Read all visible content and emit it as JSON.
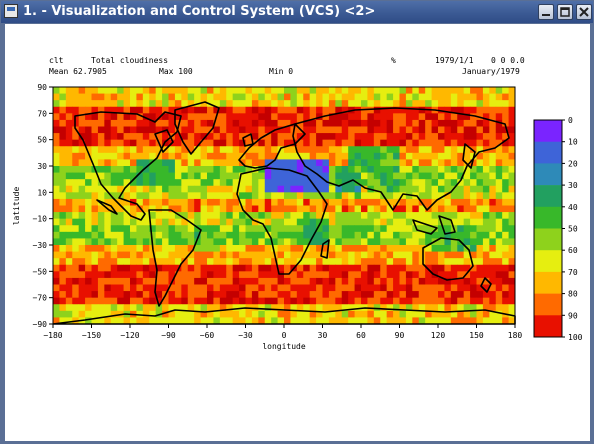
{
  "window": {
    "title": "1. - Visualization and Control System (VCS) <2>",
    "buttons": [
      "minimize",
      "maximize",
      "close"
    ]
  },
  "header": {
    "variable": "clt",
    "long_name": "Total cloudiness",
    "units": "%",
    "date": "1979/1/1",
    "time": "0 0 0.0",
    "mean_label": "Mean 62.7905",
    "max_label": "Max 100",
    "min_label": "Min  0",
    "month_label": "January/1979"
  },
  "axes": {
    "xlabel": "longitude",
    "ylabel": "latitude",
    "x_ticks": [
      "−180",
      "−150",
      "−120",
      "−90",
      "−60",
      "−30",
      "0",
      "30",
      "60",
      "90",
      "120",
      "150",
      "180"
    ],
    "y_ticks": [
      "90",
      "70",
      "50",
      "30",
      "10",
      "−10",
      "−30",
      "−50",
      "−70",
      "−90"
    ]
  },
  "colorbar": {
    "labels": [
      "0",
      "10",
      "20",
      "30",
      "40",
      "50",
      "60",
      "70",
      "80",
      "90",
      "100"
    ],
    "colors": [
      "#7a24ff",
      "#3e64d8",
      "#2e8ab8",
      "#22a060",
      "#38b82a",
      "#8ed21c",
      "#e6ee10",
      "#ffb800",
      "#ff6a00",
      "#e81000",
      "#c40000"
    ]
  },
  "colors": {
    "titlebar": "#3b5a94",
    "coast": "#000000"
  }
}
